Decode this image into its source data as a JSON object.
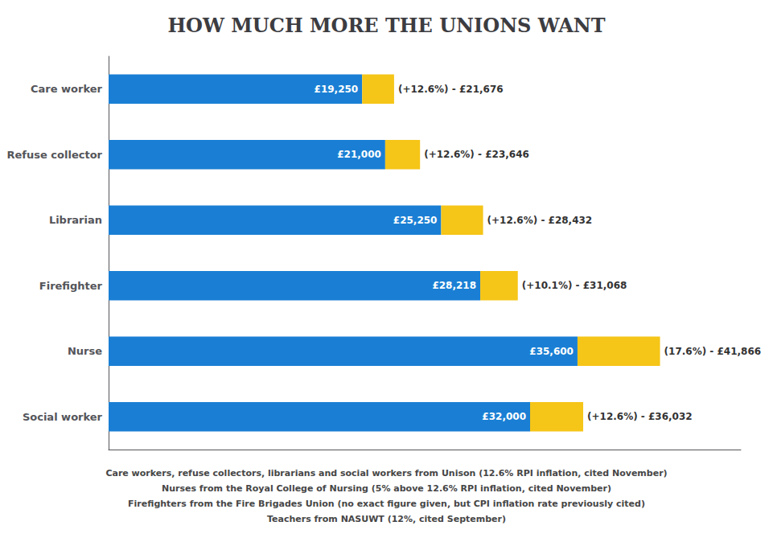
{
  "chart_data": {
    "type": "bar",
    "orientation": "horizontal",
    "stacked": true,
    "title": "HOW MUCH MORE THE UNIONS WANT",
    "categories": [
      "Care worker",
      "Refuse collector",
      "Librarian",
      "Firefighter",
      "Nurse",
      "Social worker"
    ],
    "series": [
      {
        "color": "#1a7fd4",
        "values": [
          19250,
          21000,
          25250,
          28218,
          35600,
          32000
        ],
        "value_labels": [
          "£19,250",
          "£21,000",
          "£25,250",
          "£28,218",
          "£35,600",
          "£32,000"
        ]
      },
      {
        "color": "#f5c518",
        "values": [
          2426,
          2646,
          3182,
          2850,
          6266,
          4032
        ]
      }
    ],
    "data_labels": true,
    "annotations": [
      {
        "category": "Care worker",
        "text": "(+12.6%) - £21,676"
      },
      {
        "category": "Refuse collector",
        "text": "(+12.6%) - £23,646"
      },
      {
        "category": "Librarian",
        "text": "(+12.6%) - £28,432"
      },
      {
        "category": "Firefighter",
        "text": "(+10.1%) - £31,068"
      },
      {
        "category": "Nurse",
        "text": "(17.6%) - £41,866"
      },
      {
        "category": "Social worker",
        "text": "(+12.6%) - £36,032"
      }
    ],
    "footnotes": [
      "Care workers, refuse collectors, librarians and social workers from Unison (12.6% RPI inflation, cited November)",
      "Nurses from the Royal College of Nursing (5% above 12.6% RPI inflation, cited November)",
      "Firefighters from the Fire Brigades Union (no exact figure given, but CPI inflation rate previously cited)",
      "Teachers from NASUWT (12%, cited September)"
    ],
    "xlim": [
      0,
      48000
    ],
    "grid": false,
    "tick_labels": "y"
  }
}
